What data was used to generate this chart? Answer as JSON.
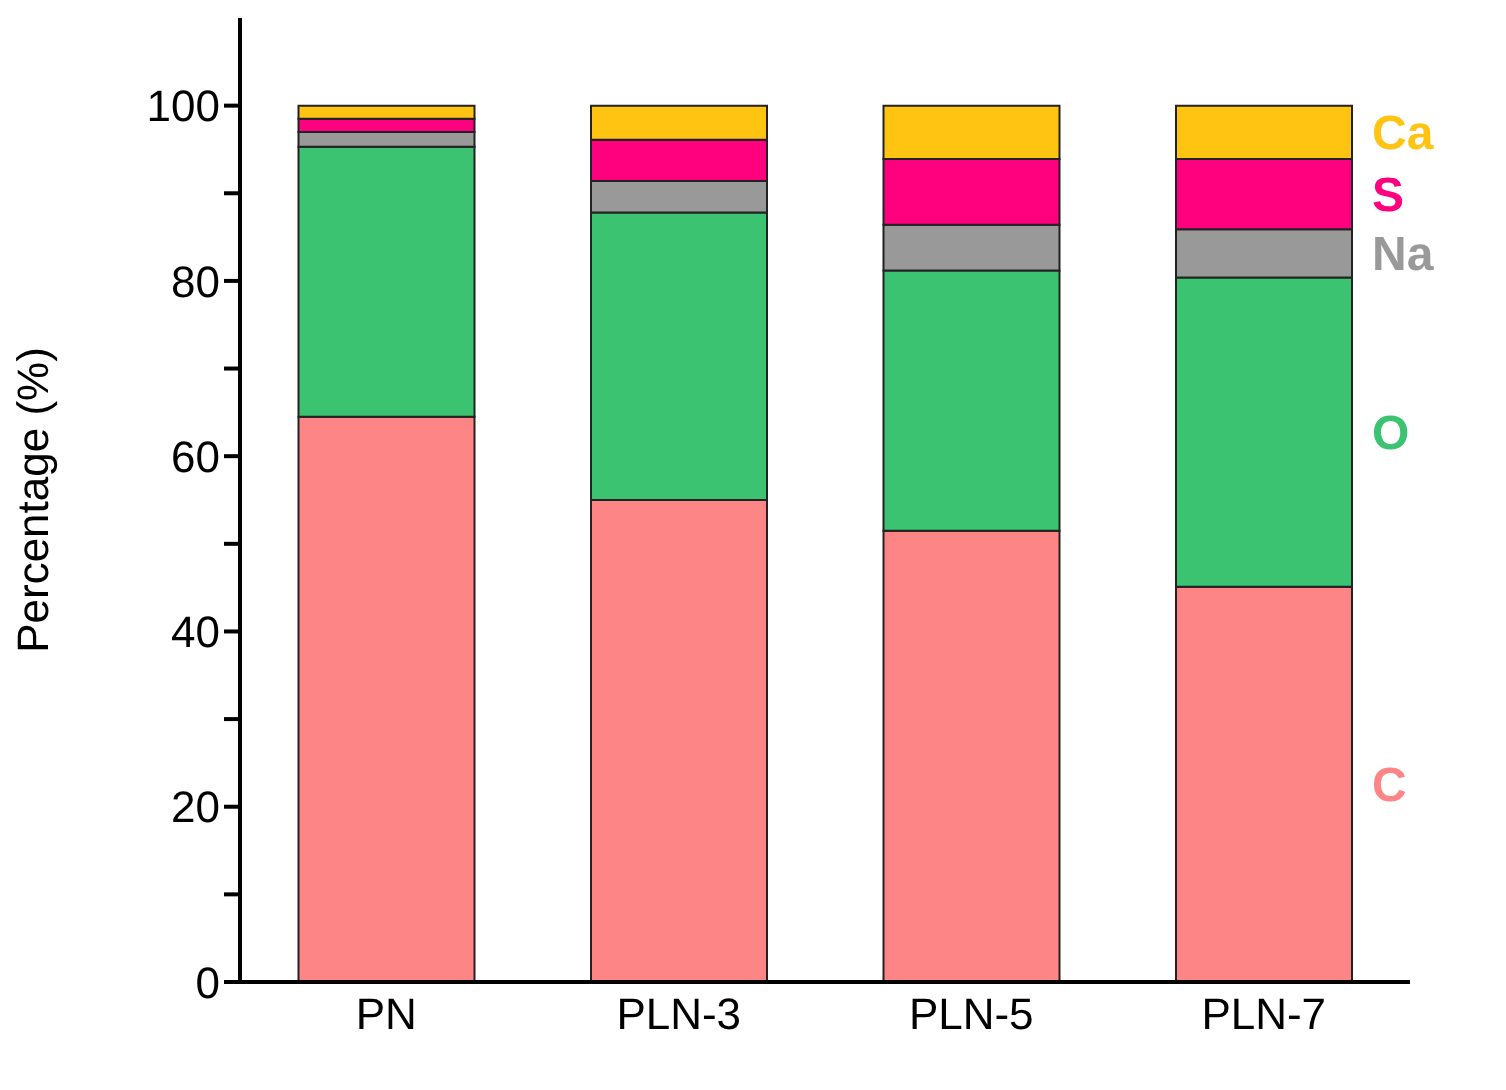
{
  "chart_data": {
    "type": "bar",
    "ylabel": "Percentage (%)",
    "stacked": true,
    "categories": [
      "PN",
      "PLN-3",
      "PLN-5",
      "PLN-7"
    ],
    "series": [
      {
        "name": "C",
        "color": "#fe8585",
        "values": [
          64.5,
          55,
          51.5,
          45.1
        ]
      },
      {
        "name": "O",
        "color": "#3cc372",
        "values": [
          30.8,
          32.8,
          29.7,
          35.3
        ]
      },
      {
        "name": "Na",
        "color": "#999999",
        "values": [
          1.7,
          3.6,
          5.2,
          5.5
        ]
      },
      {
        "name": "S",
        "color": "#ff007f",
        "values": [
          1.5,
          4.7,
          7.5,
          8.0
        ]
      },
      {
        "name": "Ca",
        "color": "#ffc312",
        "values": [
          1.5,
          3.9,
          6.1,
          6.1
        ]
      }
    ],
    "ylim": [
      0,
      110
    ],
    "yticks": [
      0,
      {
        "value": 10,
        "label": null
      },
      20,
      {
        "value": 30,
        "label": null
      },
      40,
      {
        "value": 50,
        "label": null
      },
      60,
      {
        "value": 70,
        "label": null
      },
      80,
      {
        "value": 90,
        "label": null
      },
      100
    ],
    "grid": false,
    "legend": false
  }
}
